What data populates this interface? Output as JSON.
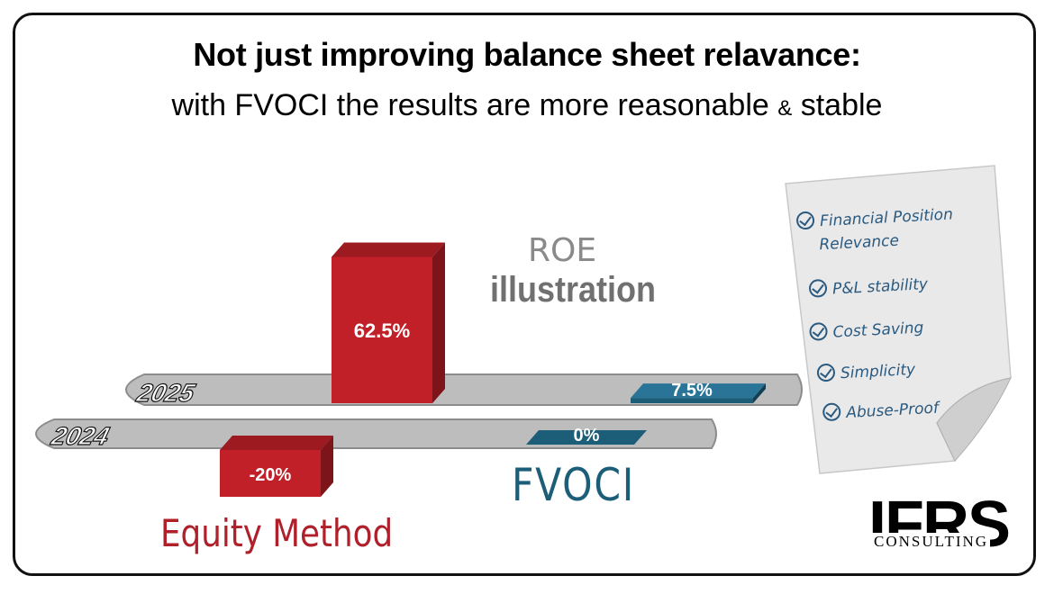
{
  "header": {
    "title": "Not just improving balance sheet relavance:",
    "subtitle_main": "with FVOCI the results are more reasonable",
    "subtitle_amp": "&",
    "subtitle_end": "stable"
  },
  "chart_data": {
    "type": "bar",
    "title": "ROE illustration",
    "title_top": "ROE",
    "title_bottom": "illustration",
    "categories": [
      "2025",
      "2024"
    ],
    "series": [
      {
        "name": "Equity Method",
        "values": [
          62.5,
          -20
        ],
        "labels": [
          "62.5%",
          "-20%"
        ],
        "color": "#c22028"
      },
      {
        "name": "FVOCI",
        "values": [
          7.5,
          0
        ],
        "labels": [
          "7.5%",
          "0%"
        ],
        "color": "#1c5d78"
      }
    ],
    "unit": "%"
  },
  "checklist": [
    "Financial Position",
    "Relevance",
    "P&L stability",
    "Cost Saving",
    "Simplicity",
    "Abuse-Proof"
  ],
  "logo": {
    "main": "IFRS",
    "sub": "CONSULTING"
  },
  "colors": {
    "red": "#c22028",
    "red_dark": "#7d1419",
    "red_top": "#9c1a20",
    "blue": "#1c5d78",
    "blue_dark": "#123f52",
    "blue_top": "#2a7597",
    "platform": "#bdbdbd",
    "platform_edge": "#8c8c8c"
  }
}
